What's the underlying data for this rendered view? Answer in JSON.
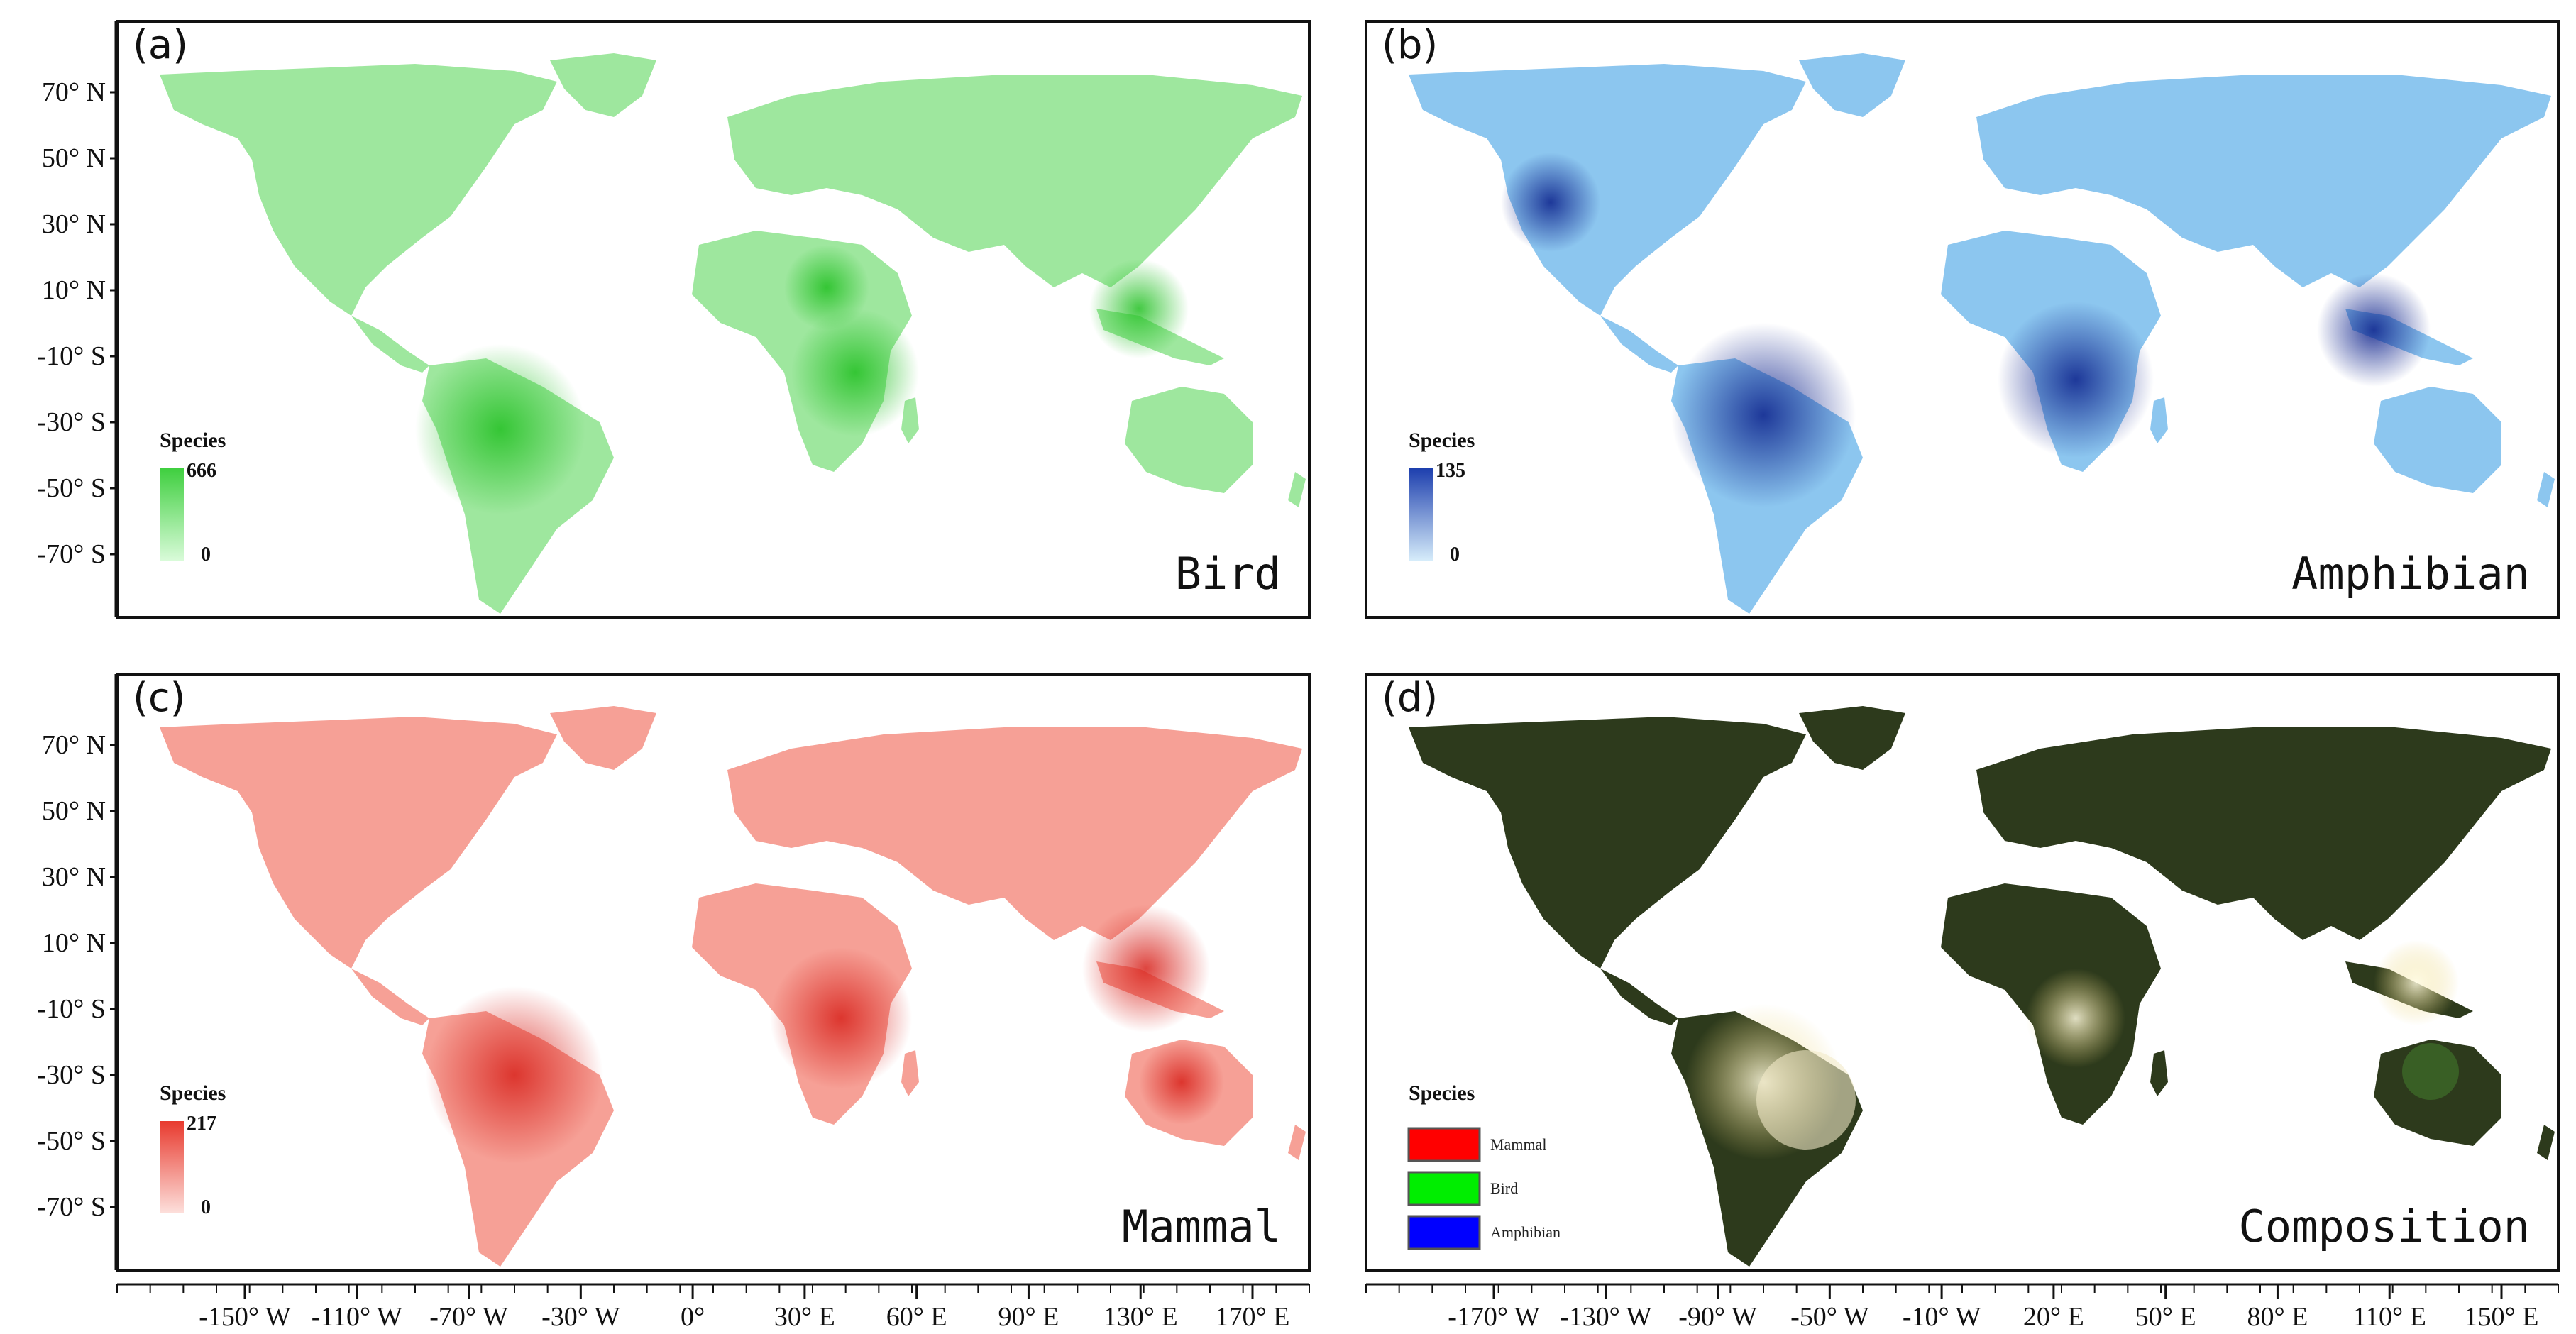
{
  "colors": {
    "bird": "#3fcf3f",
    "amphibian": "#1d3fae",
    "mammal": "#e83a2e",
    "composition_land": "#2d3a1c"
  },
  "axis_labels": {
    "lat": [
      "70° N",
      "50° N",
      "30° N",
      "10° N",
      "-10° S",
      "-30° S",
      "-50° S",
      "-70° S"
    ],
    "lon_left": [
      "-150° W",
      "-110° W",
      "-70° W",
      "-30° W",
      "0°",
      "30° E",
      "60° E",
      "90° E",
      "130° E",
      "170° E"
    ],
    "lon_right": [
      "-170° W",
      "-130° W",
      "-90° W",
      "-50° W",
      "-10° W",
      "20° E",
      "50° E",
      "80° E",
      "110° E",
      "150° E"
    ]
  },
  "panels": [
    {
      "id": "a",
      "letter": "(a)",
      "name": "Bird",
      "legend_title": "Species",
      "max": "666",
      "min": "0",
      "color": "#3fcf3f"
    },
    {
      "id": "b",
      "letter": "(b)",
      "name": "Amphibian",
      "legend_title": "Species",
      "max": "135",
      "min": "0",
      "color": "#1d3fae"
    },
    {
      "id": "c",
      "letter": "(c)",
      "name": "Mammal",
      "legend_title": "Species",
      "max": "217",
      "min": "0",
      "color": "#e83a2e"
    },
    {
      "id": "d",
      "letter": "(d)",
      "name": "Composition",
      "legend_title": "Species",
      "legend_items": [
        {
          "label": "Mammal",
          "color": "#ff0000"
        },
        {
          "label": "Bird",
          "color": "#00ee00"
        },
        {
          "label": "Amphibian",
          "color": "#0000ff"
        }
      ]
    }
  ]
}
